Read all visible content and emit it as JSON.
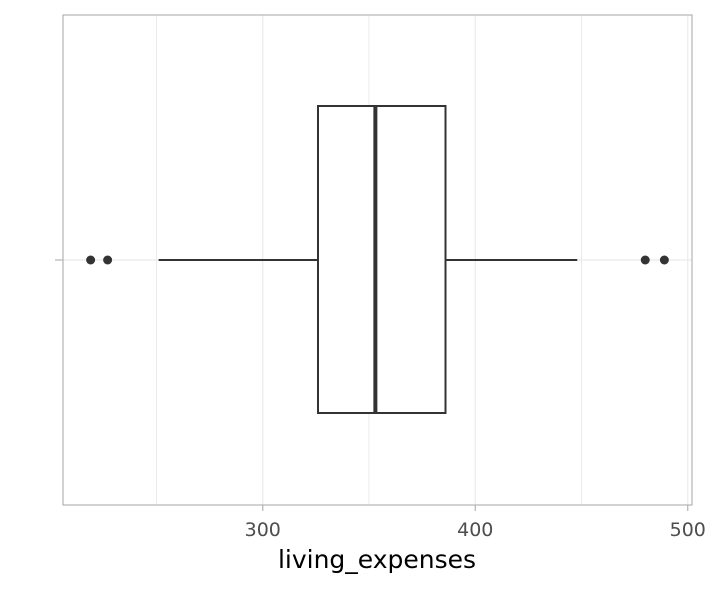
{
  "chart_data": {
    "type": "boxplot",
    "orientation": "horizontal",
    "title": "",
    "xlabel": "living_expenses",
    "ylabel": "",
    "xlim": [
      206,
      502
    ],
    "x_ticks": [
      300,
      400,
      500
    ],
    "x_tick_labels": [
      "300",
      "400",
      "500"
    ],
    "grid": true,
    "box": {
      "whisker_low": 251,
      "q1": 326,
      "median": 353,
      "q3": 386,
      "whisker_high": 448,
      "outliers": [
        219,
        227,
        480,
        489
      ]
    },
    "colors": {
      "box_line": "#333333",
      "box_fill": "#ffffff",
      "grid": "#ebebeb",
      "panel_border": "#b3b3b3",
      "tick_text": "#4d4d4d"
    }
  }
}
